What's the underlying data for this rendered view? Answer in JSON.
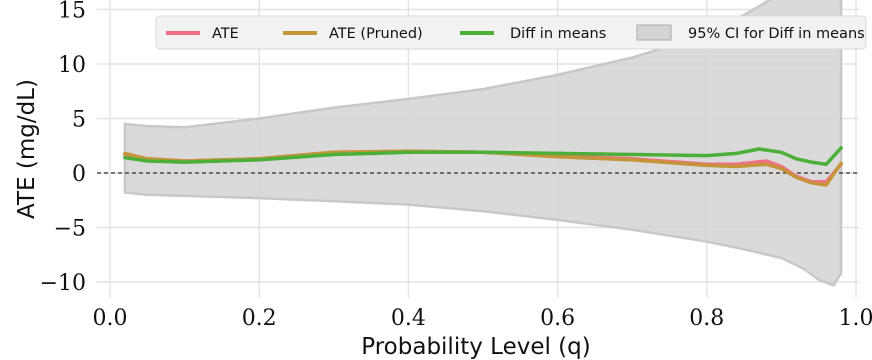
{
  "chart_data": {
    "type": "line",
    "title": "",
    "xlabel": "Probability Level (q)",
    "ylabel": "ATE (mg/dL)",
    "xlim": [
      0.0,
      1.0
    ],
    "ylim": [
      -11,
      15
    ],
    "x_ticks": [
      "0.0",
      "0.2",
      "0.4",
      "0.6",
      "0.8",
      "1.0"
    ],
    "x_tick_values": [
      0.0,
      0.2,
      0.4,
      0.6,
      0.8,
      1.0
    ],
    "y_ticks": [
      "−10",
      "−5",
      "0",
      "5",
      "10",
      "15"
    ],
    "y_tick_values": [
      -10,
      -5,
      0,
      5,
      10,
      15
    ],
    "grid": true,
    "legend_position": "top",
    "reference_line": {
      "y": 0,
      "style": "dashed"
    },
    "series": [
      {
        "name": "ATE",
        "color": "#f07087",
        "x": [
          0.02,
          0.05,
          0.1,
          0.2,
          0.3,
          0.4,
          0.5,
          0.6,
          0.7,
          0.8,
          0.84,
          0.88,
          0.9,
          0.92,
          0.94,
          0.96,
          0.98
        ],
        "y": [
          1.7,
          1.3,
          1.1,
          1.3,
          1.9,
          2.0,
          1.9,
          1.6,
          1.3,
          0.8,
          0.8,
          1.1,
          0.6,
          -0.3,
          -0.8,
          -0.8,
          0.8
        ]
      },
      {
        "name": "ATE (Pruned)",
        "color": "#c4953a",
        "x": [
          0.02,
          0.05,
          0.1,
          0.2,
          0.3,
          0.4,
          0.5,
          0.6,
          0.7,
          0.8,
          0.84,
          0.88,
          0.9,
          0.92,
          0.94,
          0.96,
          0.98
        ],
        "y": [
          1.8,
          1.3,
          1.1,
          1.3,
          1.9,
          2.0,
          1.9,
          1.5,
          1.2,
          0.7,
          0.6,
          0.8,
          0.4,
          -0.4,
          -0.9,
          -1.1,
          0.9
        ]
      },
      {
        "name": "Diff in means",
        "color": "#4caf3a",
        "x": [
          0.02,
          0.05,
          0.1,
          0.2,
          0.3,
          0.4,
          0.5,
          0.6,
          0.7,
          0.8,
          0.84,
          0.87,
          0.9,
          0.92,
          0.94,
          0.96,
          0.98
        ],
        "y": [
          1.4,
          1.1,
          1.0,
          1.2,
          1.7,
          1.9,
          1.9,
          1.8,
          1.7,
          1.6,
          1.8,
          2.2,
          1.9,
          1.3,
          1.0,
          0.8,
          2.3
        ]
      }
    ],
    "band": {
      "name": "95% CI for Diff in means",
      "color": "#d4d4d4",
      "x": [
        0.02,
        0.05,
        0.1,
        0.2,
        0.3,
        0.4,
        0.5,
        0.6,
        0.7,
        0.8,
        0.85,
        0.9,
        0.93,
        0.95,
        0.97,
        0.98
      ],
      "upper": [
        4.5,
        4.3,
        4.2,
        5.0,
        6.0,
        6.8,
        7.7,
        9.0,
        10.6,
        12.7,
        14.5,
        16.5,
        17.5,
        18.0,
        18.5,
        18.5
      ],
      "lower": [
        -1.8,
        -2.0,
        -2.1,
        -2.3,
        -2.6,
        -2.9,
        -3.5,
        -4.3,
        -5.2,
        -6.3,
        -7.0,
        -7.8,
        -8.8,
        -9.8,
        -10.3,
        -9.2
      ]
    }
  }
}
